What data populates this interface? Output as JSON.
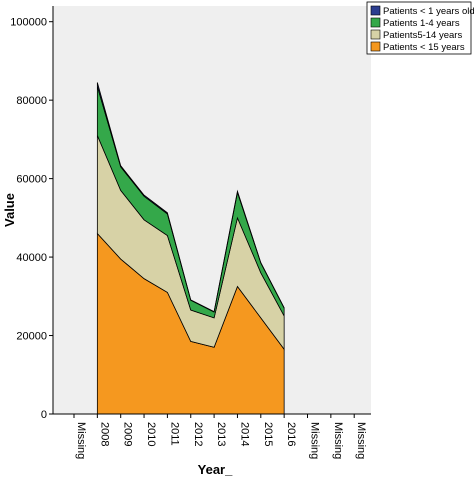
{
  "colors": {
    "background": "#ffffff",
    "plot_background": "#efefef",
    "axis": "#000000",
    "outline": "#000000"
  },
  "chart_data": {
    "type": "area",
    "stacked": true,
    "title": "",
    "xlabel": "Year_",
    "ylabel": "Value",
    "categories": [
      "Missing",
      "2008",
      "2009",
      "2010",
      "2011",
      "2012",
      "2013",
      "2014",
      "2015",
      "2016",
      "Missing",
      "Missing",
      "Missing"
    ],
    "ylim": [
      0,
      104000
    ],
    "yticks": [
      0,
      20000,
      40000,
      60000,
      80000,
      100000
    ],
    "grid": false,
    "legend_position": "top-right",
    "series": [
      {
        "name": "Patients < 15 years",
        "color": "#f5981f",
        "values": [
          null,
          46000,
          39500,
          34500,
          31000,
          18500,
          17000,
          32500,
          24500,
          16500,
          null,
          null,
          null
        ]
      },
      {
        "name": "Patients5-14 years",
        "color": "#d7d2a6",
        "values": [
          null,
          25000,
          17500,
          15000,
          14500,
          8000,
          7500,
          17500,
          11500,
          8500,
          null,
          null,
          null
        ]
      },
      {
        "name": "Patients 1-4 years",
        "color": "#34a84a",
        "values": [
          null,
          12500,
          6000,
          6000,
          5500,
          2500,
          1500,
          6500,
          2500,
          2000,
          null,
          null,
          null
        ]
      },
      {
        "name": "Patients < 1 years old",
        "color": "#2b3d8f",
        "values": [
          null,
          1000,
          300,
          300,
          300,
          100,
          100,
          300,
          100,
          100,
          null,
          null,
          null
        ]
      }
    ],
    "legend_order": [
      "Patients < 1 years old",
      "Patients 1-4 years",
      "Patients5-14 years",
      "Patients < 15 years"
    ]
  }
}
